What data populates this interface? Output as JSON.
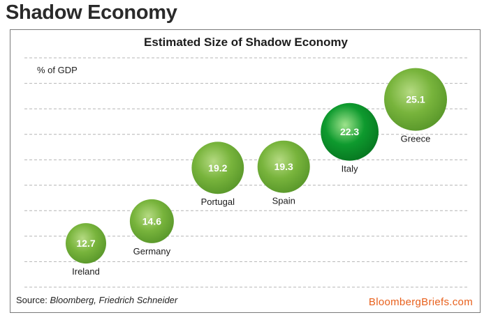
{
  "header": {
    "title": "Shadow Economy"
  },
  "chart_data": {
    "type": "bubble",
    "title": "Estimated Size of Shadow Economy",
    "ylabel": "% of GDP",
    "ylim": [
      10,
      27
    ],
    "grid": true,
    "categories": [
      "Ireland",
      "Germany",
      "Portugal",
      "Spain",
      "Italy",
      "Greece"
    ],
    "values": [
      12.7,
      14.6,
      19.2,
      19.3,
      22.3,
      25.1
    ],
    "value_labels": [
      "12.7",
      "14.6",
      "19.2",
      "19.3",
      "22.3",
      "25.1"
    ],
    "highlight": "Italy",
    "colors": {
      "bubble": "#78b43c",
      "bubble_light": "#b5da82",
      "bubble_dark": "#5c9a2c",
      "highlight": "#0e9a2e",
      "highlight_light": "#9fe38c",
      "highlight_dark": "#087a22",
      "grid": "#b4b4b4",
      "label_text": "#ffffff"
    }
  },
  "footer": {
    "source_label": "Source:",
    "source_text": "Bloomberg, Friedrich Schneider",
    "brand": "BloombergBriefs.com",
    "brand_color": "#e8601c"
  }
}
